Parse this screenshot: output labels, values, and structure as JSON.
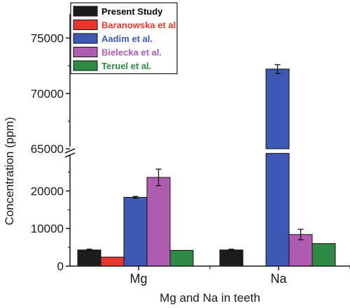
{
  "chart_data": {
    "type": "bar",
    "xlabel": "Mg and Na in teeth",
    "ylabel": "Concentration (ppm)",
    "categories": [
      "Mg",
      "Na"
    ],
    "axis_break": {
      "lower_range": [
        0,
        30000
      ],
      "upper_range": [
        65000,
        76000
      ]
    },
    "yticks_lower": [
      "0",
      "10000",
      "20000"
    ],
    "yticks_upper": [
      "65000",
      "70000",
      "75000"
    ],
    "legend_position": "top-left",
    "grid": false,
    "series": [
      {
        "name": "Present Study",
        "color": "#1c1c1c",
        "text_color": "#000000",
        "values": [
          4300,
          4300
        ],
        "errors": [
          200,
          200
        ]
      },
      {
        "name": "Baranowska et al.",
        "color": "#e8382d",
        "text_color": "#e8382d",
        "values": [
          2400,
          null
        ],
        "errors": [
          0,
          null
        ]
      },
      {
        "name": "Aadim et al.",
        "color": "#3d59b5",
        "text_color": "#3d59b5",
        "values": [
          18300,
          72200
        ],
        "errors": [
          250,
          400
        ]
      },
      {
        "name": "Bielecka et al.",
        "color": "#b05cb0",
        "text_color": "#b05cb0",
        "values": [
          23600,
          8400
        ],
        "errors": [
          2200,
          1400
        ]
      },
      {
        "name": "Teruel et al.",
        "color": "#2f8a46",
        "text_color": "#2f8a46",
        "values": [
          4200,
          6000
        ],
        "errors": [
          0,
          0
        ]
      }
    ]
  }
}
